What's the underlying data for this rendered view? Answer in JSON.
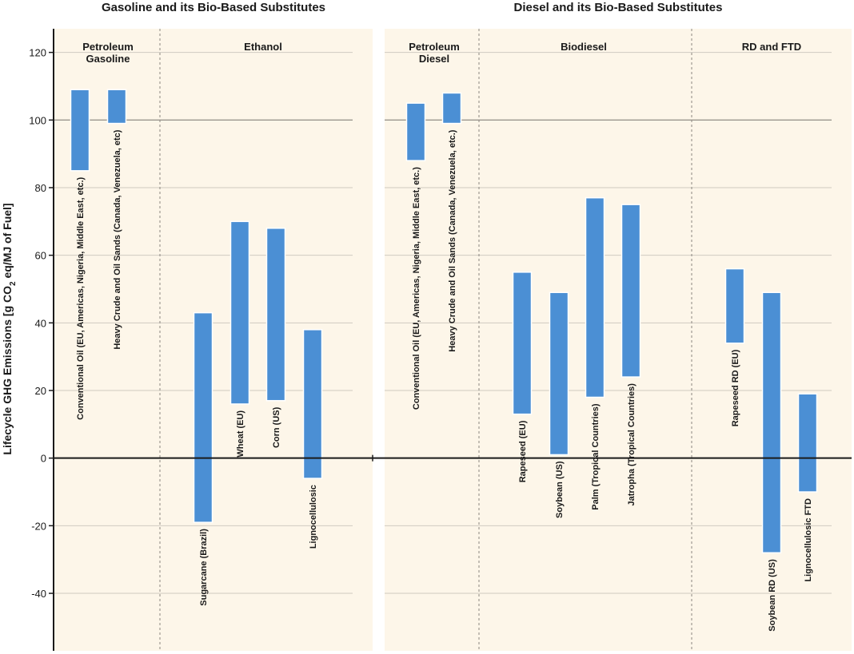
{
  "chart_data": {
    "type": "bar",
    "subtype": "floating-range",
    "ylabel": "Lifecycle GHG Emissions [g CO",
    "ylabel_sub": "2",
    "ylabel_tail": " eq/MJ of Fuel]",
    "ylim": [
      -57,
      127
    ],
    "yticks": [
      -40,
      -20,
      0,
      20,
      40,
      60,
      80,
      100,
      120
    ],
    "grid": true,
    "reference_line": 100,
    "colors": {
      "bar": "#4b8fd4",
      "bar_edge": "#ffffff",
      "panel": "#fdf6e9",
      "grid": "#cfcac0",
      "axis": "#1a1a1a"
    },
    "panels": [
      {
        "title": "Gasoline and its Bio-Based Substitutes",
        "sections": [
          {
            "label_lines": [
              "Petroleum",
              "Gasoline"
            ]
          },
          {
            "label_lines": [
              "Ethanol"
            ]
          }
        ],
        "bars": [
          {
            "section": 0,
            "label": "Conventional Oil (EU, Americas, Nigeria, Middle East, etc.)",
            "min": 85,
            "max": 109
          },
          {
            "section": 0,
            "label": "Heavy Crude and Oil Sands (Canada, Venezuela, etc)",
            "min": 99,
            "max": 109
          },
          {
            "section": 1,
            "label": "Sugarcane (Brazil)",
            "min": -19,
            "max": 43
          },
          {
            "section": 1,
            "label": "Wheat (EU)",
            "min": 16,
            "max": 70
          },
          {
            "section": 1,
            "label": "Corn (US)",
            "min": 17,
            "max": 68
          },
          {
            "section": 1,
            "label": "Lignocellulosic",
            "min": -6,
            "max": 38
          }
        ]
      },
      {
        "title": "Diesel and its Bio-Based Substitutes",
        "sections": [
          {
            "label_lines": [
              "Petroleum",
              "Diesel"
            ]
          },
          {
            "label_lines": [
              "Biodiesel"
            ]
          },
          {
            "label_lines": [
              "RD and FTD"
            ]
          }
        ],
        "bars": [
          {
            "section": 0,
            "label": "Conventional Oil (EU, Americas, Nigeria, Middle East, etc.)",
            "min": 88,
            "max": 105
          },
          {
            "section": 0,
            "label": "Heavy Crude and Oil Sands (Canada, Venezuela, etc.)",
            "min": 99,
            "max": 108
          },
          {
            "section": 1,
            "label": "Rapeseed (EU)",
            "min": 13,
            "max": 55
          },
          {
            "section": 1,
            "label": "Soybean (US)",
            "min": 1,
            "max": 49
          },
          {
            "section": 1,
            "label": "Palm (Tropical Countries)",
            "min": 18,
            "max": 77
          },
          {
            "section": 1,
            "label": "Jatropha (Tropical Countries)",
            "min": 24,
            "max": 75
          },
          {
            "section": 2,
            "label": "Rapeseed RD (EU)",
            "min": 34,
            "max": 56
          },
          {
            "section": 2,
            "label": "Soybean RD (US)",
            "min": -28,
            "max": 49
          },
          {
            "section": 2,
            "label": "Lignocellulosic FTD",
            "min": -10,
            "max": 19
          }
        ]
      }
    ]
  }
}
